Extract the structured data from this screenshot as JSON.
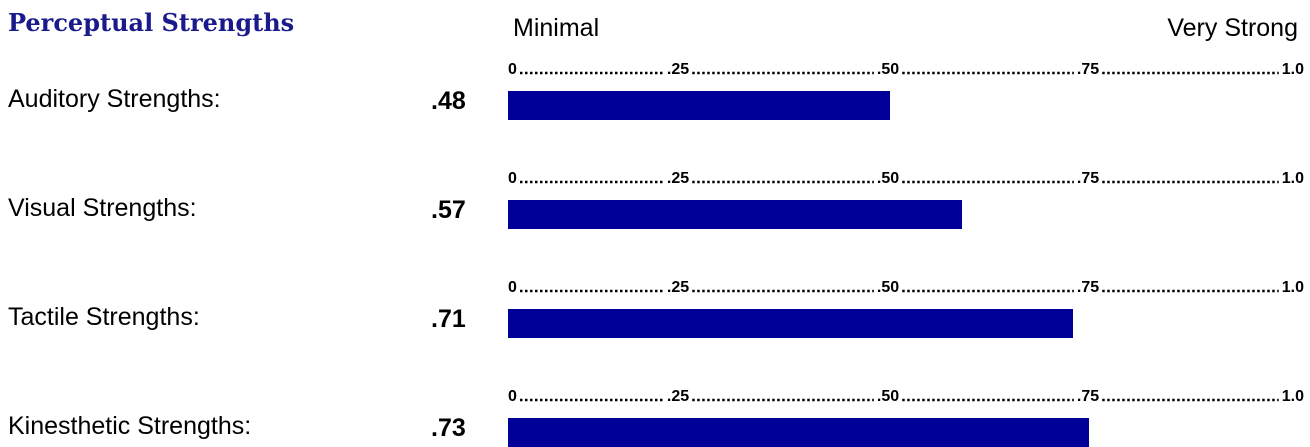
{
  "header": {
    "title": "Perceptual Strengths",
    "scale_min_label": "Minimal",
    "scale_max_label": "Very Strong"
  },
  "chart_data": {
    "type": "bar",
    "orientation": "horizontal",
    "title": "Perceptual Strengths",
    "categories": [
      "Auditory Strengths:",
      "Visual Strengths:",
      "Tactile Strengths:",
      "Kinesthetic Strengths:"
    ],
    "values": [
      0.48,
      0.57,
      0.71,
      0.73
    ],
    "value_labels": [
      ".48",
      ".57",
      ".71",
      ".73"
    ],
    "xlim": [
      0,
      1.0
    ],
    "tick_labels": [
      "0",
      ".25",
      ".50",
      ".75",
      "1.0"
    ],
    "bar_color": "#000099",
    "grid": false,
    "legend": "none"
  }
}
